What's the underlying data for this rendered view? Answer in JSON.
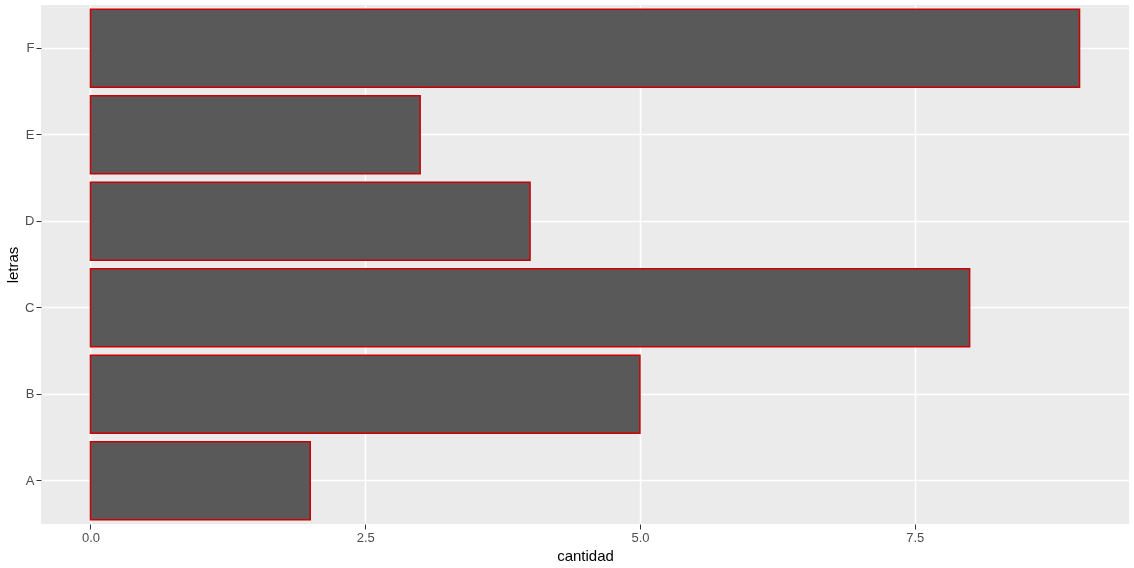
{
  "chart_data": {
    "type": "bar",
    "orientation": "horizontal",
    "xlabel": "cantidad",
    "ylabel": "letras",
    "categories": [
      "F",
      "E",
      "D",
      "C",
      "B",
      "A"
    ],
    "values": [
      9,
      3,
      4,
      8,
      5,
      2
    ],
    "color": "#595959",
    "xlim": [
      -0.45,
      9.45
    ],
    "xticks": [
      {
        "value": 0,
        "label": "0.0"
      },
      2.5,
      {
        "value": 5,
        "label": "5.0"
      },
      7.5
    ],
    "grid": true
  }
}
